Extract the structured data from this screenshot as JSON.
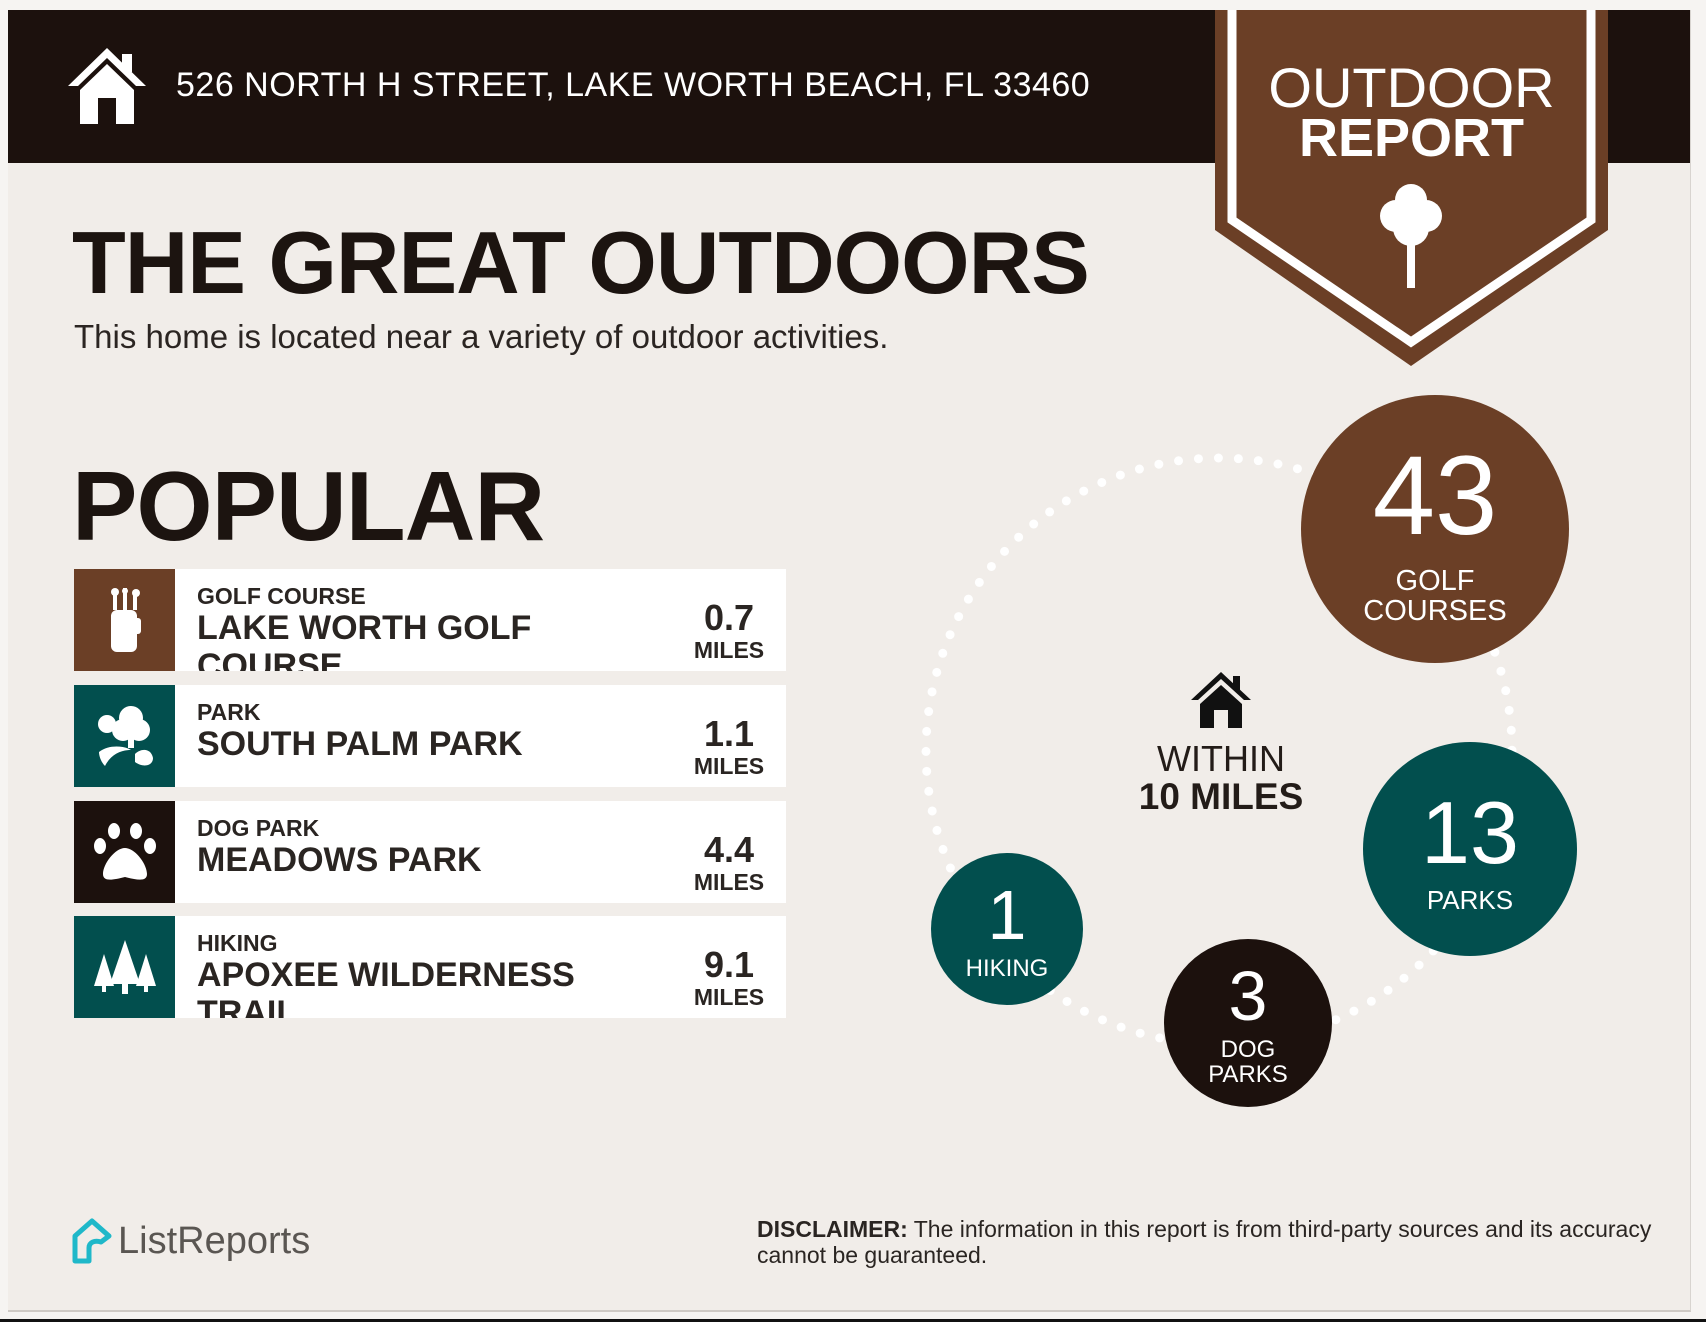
{
  "header": {
    "address": "526 NORTH H STREET, LAKE WORTH BEACH, FL 33460",
    "icon": "house-icon"
  },
  "ribbon": {
    "line1": "OUTDOOR",
    "line2": "REPORT",
    "icon": "tree-icon"
  },
  "title": "THE GREAT OUTDOORS",
  "subtitle": "This home is located near a variety of outdoor activities.",
  "popular": {
    "heading": "POPULAR",
    "items": [
      {
        "category": "GOLF COURSE",
        "name": "LAKE WORTH GOLF COURSE",
        "distance": "0.7",
        "unit": "MILES",
        "icon": "golf-bag-icon",
        "color": "#6b3f26"
      },
      {
        "category": "PARK",
        "name": "SOUTH PALM PARK",
        "distance": "1.1",
        "unit": "MILES",
        "icon": "park-trees-icon",
        "color": "#024f4e"
      },
      {
        "category": "DOG PARK",
        "name": "MEADOWS PARK",
        "distance": "4.4",
        "unit": "MILES",
        "icon": "paw-icon",
        "color": "#1c110d"
      },
      {
        "category": "HIKING",
        "name": "APOXEE WILDERNESS TRAIL",
        "distance": "9.1",
        "unit": "MILES",
        "icon": "pine-trees-icon",
        "color": "#024f4e"
      }
    ]
  },
  "summary": {
    "center_line1": "WITHIN",
    "center_line2": "10 MILES",
    "counts": [
      {
        "count": "43",
        "label1": "GOLF",
        "label2": "COURSES",
        "color": "#6b3f26"
      },
      {
        "count": "13",
        "label1": "PARKS",
        "label2": "",
        "color": "#024f4e"
      },
      {
        "count": "3",
        "label1": "DOG",
        "label2": "PARKS",
        "color": "#1c110d"
      },
      {
        "count": "1",
        "label1": "HIKING",
        "label2": "",
        "color": "#024f4e"
      }
    ]
  },
  "footer": {
    "logo": "ListReports",
    "disclaimer_label": "DISCLAIMER:",
    "disclaimer_text": " The information in this report is from third-party sources and its accuracy cannot be guaranteed."
  },
  "colors": {
    "brown": "#6b3f26",
    "teal": "#024f4e",
    "dark": "#1c110d",
    "background": "#f1ede9",
    "logo": "#1fb8c9"
  }
}
